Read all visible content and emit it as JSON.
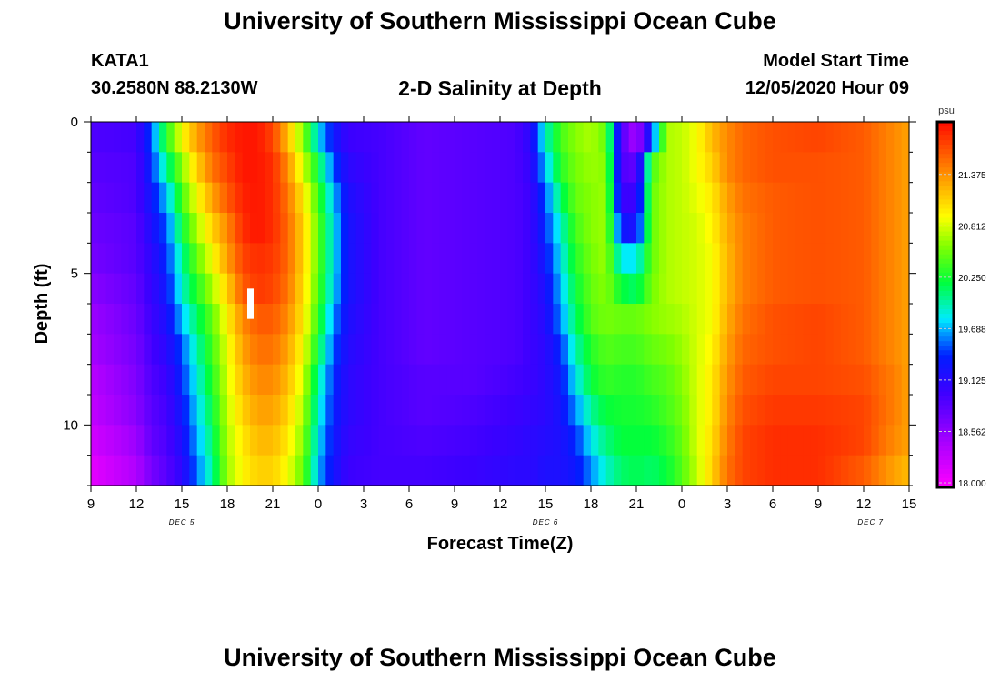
{
  "title": "University of Southern Mississippi Ocean Cube",
  "footer_title": "University of Southern Mississippi Ocean Cube",
  "station": {
    "id": "KATA1",
    "coords": "30.2580N 88.2130W"
  },
  "plot_title": "2-D Salinity at Depth",
  "model_start": {
    "label": "Model Start Time",
    "value": "12/05/2020 Hour 09"
  },
  "chart_data": {
    "type": "heatmap",
    "title": "2-D Salinity at Depth",
    "xlabel": "Forecast Time(Z)",
    "ylabel": "Depth (ft)",
    "x_ticks": [
      "9",
      "12",
      "15",
      "18",
      "21",
      "0",
      "3",
      "6",
      "9",
      "12",
      "15",
      "18",
      "21",
      "0",
      "3",
      "6",
      "9",
      "12",
      "15"
    ],
    "x_range_hours": [
      0,
      54
    ],
    "y_ticks": [
      "0",
      "5",
      "10"
    ],
    "ylim": [
      0,
      12
    ],
    "date_labels": [
      "DEC 5",
      "DEC 6",
      "DEC 7"
    ],
    "colorbar": {
      "unit": "psu",
      "ticks": [
        "21.375",
        "20.812",
        "20.250",
        "19.688",
        "19.125",
        "18.562",
        "18.000"
      ],
      "range": [
        17.95,
        21.95
      ]
    },
    "columns": [
      {
        "t": 0,
        "s": [
          18.9,
          18.85,
          18.8,
          18.75,
          18.7,
          18.6,
          18.5,
          18.45,
          18.35,
          18.3,
          18.2,
          18.1
        ]
      },
      {
        "t": 3,
        "s": [
          18.95,
          18.9,
          18.9,
          18.85,
          18.85,
          18.8,
          18.75,
          18.7,
          18.65,
          18.6,
          18.5,
          18.4
        ]
      },
      {
        "t": 4,
        "s": [
          19.5,
          19.4,
          19.3,
          19.2,
          19.1,
          19.05,
          19.0,
          18.95,
          18.9,
          18.85,
          18.8,
          18.7
        ]
      },
      {
        "t": 5,
        "s": [
          20.3,
          20.0,
          19.7,
          19.5,
          19.4,
          19.3,
          19.2,
          19.1,
          19.0,
          18.95,
          18.9,
          18.85
        ]
      },
      {
        "t": 6,
        "s": [
          20.9,
          20.6,
          20.4,
          20.2,
          20.0,
          19.9,
          19.7,
          19.5,
          19.4,
          19.3,
          19.2,
          19.1
        ]
      },
      {
        "t": 7,
        "s": [
          21.3,
          21.1,
          20.9,
          20.7,
          20.5,
          20.3,
          20.1,
          19.95,
          19.85,
          19.75,
          19.65,
          19.55
        ]
      },
      {
        "t": 8,
        "s": [
          21.6,
          21.5,
          21.3,
          21.1,
          20.9,
          20.7,
          20.5,
          20.4,
          20.3,
          20.2,
          20.1,
          20.0
        ]
      },
      {
        "t": 9,
        "s": [
          21.8,
          21.7,
          21.6,
          21.4,
          21.3,
          21.1,
          20.95,
          20.85,
          20.8,
          20.75,
          20.7,
          20.65
        ]
      },
      {
        "t": 10,
        "s": [
          21.9,
          21.9,
          21.85,
          21.8,
          21.7,
          21.6,
          21.4,
          21.3,
          21.2,
          21.1,
          21.0,
          20.95
        ]
      },
      {
        "t": 11,
        "s": [
          21.9,
          21.9,
          21.9,
          21.9,
          21.8,
          21.75,
          21.6,
          21.5,
          21.4,
          21.3,
          21.2,
          21.1
        ]
      },
      {
        "t": 12,
        "s": [
          21.7,
          21.8,
          21.8,
          21.8,
          21.75,
          21.7,
          21.6,
          21.5,
          21.4,
          21.3,
          21.2,
          21.1
        ]
      },
      {
        "t": 13,
        "s": [
          21.2,
          21.4,
          21.5,
          21.55,
          21.55,
          21.5,
          21.4,
          21.3,
          21.2,
          21.1,
          21.0,
          20.9
        ]
      },
      {
        "t": 14,
        "s": [
          20.6,
          20.8,
          21.0,
          21.1,
          21.1,
          21.05,
          21.0,
          20.9,
          20.8,
          20.7,
          20.6,
          20.5
        ]
      },
      {
        "t": 15,
        "s": [
          19.8,
          20.2,
          20.4,
          20.5,
          20.5,
          20.45,
          20.35,
          20.2,
          20.0,
          19.9,
          19.8,
          19.7
        ]
      },
      {
        "t": 16,
        "s": [
          19.3,
          19.5,
          19.7,
          19.8,
          19.8,
          19.75,
          19.6,
          19.5,
          19.4,
          19.35,
          19.3,
          19.25
        ]
      },
      {
        "t": 17,
        "s": [
          19.0,
          19.1,
          19.2,
          19.25,
          19.25,
          19.25,
          19.2,
          19.15,
          19.1,
          19.1,
          19.05,
          19.0
        ]
      },
      {
        "t": 19,
        "s": [
          18.95,
          18.95,
          18.95,
          18.95,
          18.95,
          18.95,
          18.95,
          18.95,
          18.95,
          18.95,
          18.95,
          18.95
        ]
      },
      {
        "t": 22,
        "s": [
          18.8,
          18.8,
          18.8,
          18.8,
          18.8,
          18.8,
          18.8,
          18.8,
          18.85,
          18.85,
          18.9,
          18.95
        ]
      },
      {
        "t": 25,
        "s": [
          18.85,
          18.85,
          18.85,
          18.85,
          18.85,
          18.85,
          18.85,
          18.85,
          18.85,
          18.9,
          18.95,
          19.0
        ]
      },
      {
        "t": 28,
        "s": [
          18.9,
          18.9,
          18.9,
          18.9,
          18.9,
          18.9,
          18.9,
          18.9,
          18.95,
          19.0,
          19.05,
          19.1
        ]
      },
      {
        "t": 29,
        "s": [
          19.1,
          19.05,
          19.0,
          19.0,
          19.0,
          19.0,
          19.0,
          19.0,
          19.0,
          19.05,
          19.1,
          19.1
        ]
      },
      {
        "t": 30,
        "s": [
          19.9,
          19.7,
          19.5,
          19.4,
          19.3,
          19.2,
          19.15,
          19.1,
          19.1,
          19.1,
          19.15,
          19.2
        ]
      },
      {
        "t": 31,
        "s": [
          20.4,
          20.3,
          20.1,
          19.9,
          19.8,
          19.7,
          19.6,
          19.4,
          19.3,
          19.25,
          19.2,
          19.2
        ]
      },
      {
        "t": 32,
        "s": [
          20.6,
          20.55,
          20.5,
          20.4,
          20.3,
          20.2,
          20.1,
          19.95,
          19.8,
          19.6,
          19.4,
          19.3
        ]
      },
      {
        "t": 33,
        "s": [
          20.7,
          20.65,
          20.6,
          20.6,
          20.55,
          20.5,
          20.45,
          20.3,
          20.2,
          20.0,
          19.8,
          19.6
        ]
      },
      {
        "t": 34,
        "s": [
          20.5,
          20.6,
          20.65,
          20.65,
          20.65,
          20.6,
          20.55,
          20.45,
          20.35,
          20.2,
          20.05,
          19.9
        ]
      },
      {
        "t": 35,
        "s": [
          18.9,
          18.9,
          19.0,
          19.3,
          19.8,
          20.2,
          20.5,
          20.4,
          20.3,
          20.25,
          20.2,
          20.1
        ]
      },
      {
        "t": 36,
        "s": [
          18.4,
          18.8,
          19.0,
          19.2,
          19.8,
          20.1,
          20.5,
          20.4,
          20.3,
          20.25,
          20.2,
          20.15
        ]
      },
      {
        "t": 37,
        "s": [
          19.4,
          20.4,
          20.5,
          20.5,
          20.5,
          20.55,
          20.6,
          20.5,
          20.4,
          20.3,
          20.2,
          20.1
        ]
      },
      {
        "t": 38,
        "s": [
          20.7,
          20.7,
          20.7,
          20.7,
          20.7,
          20.7,
          20.65,
          20.55,
          20.45,
          20.4,
          20.3,
          20.2
        ]
      },
      {
        "t": 39,
        "s": [
          20.75,
          20.75,
          20.75,
          20.75,
          20.75,
          20.75,
          20.7,
          20.65,
          20.6,
          20.55,
          20.5,
          20.45
        ]
      },
      {
        "t": 40,
        "s": [
          20.9,
          20.9,
          20.85,
          20.8,
          20.8,
          20.8,
          20.8,
          20.8,
          20.8,
          20.8,
          20.8,
          20.75
        ]
      },
      {
        "t": 41,
        "s": [
          21.2,
          21.1,
          21.0,
          20.95,
          20.9,
          20.9,
          20.9,
          20.95,
          21.0,
          21.0,
          21.05,
          21.1
        ]
      },
      {
        "t": 42,
        "s": [
          21.4,
          21.4,
          21.3,
          21.25,
          21.2,
          21.2,
          21.25,
          21.3,
          21.35,
          21.4,
          21.45,
          21.5
        ]
      },
      {
        "t": 43,
        "s": [
          21.55,
          21.55,
          21.5,
          21.45,
          21.45,
          21.45,
          21.5,
          21.55,
          21.6,
          21.65,
          21.7,
          21.7
        ]
      },
      {
        "t": 45,
        "s": [
          21.65,
          21.65,
          21.6,
          21.6,
          21.6,
          21.6,
          21.65,
          21.65,
          21.7,
          21.75,
          21.8,
          21.8
        ]
      },
      {
        "t": 48,
        "s": [
          21.7,
          21.65,
          21.65,
          21.65,
          21.65,
          21.65,
          21.7,
          21.7,
          21.7,
          21.75,
          21.8,
          21.8
        ]
      },
      {
        "t": 51,
        "s": [
          21.6,
          21.6,
          21.6,
          21.6,
          21.6,
          21.6,
          21.6,
          21.6,
          21.65,
          21.7,
          21.7,
          21.6
        ]
      },
      {
        "t": 53,
        "s": [
          21.4,
          21.4,
          21.4,
          21.4,
          21.4,
          21.4,
          21.4,
          21.4,
          21.45,
          21.45,
          21.4,
          21.3
        ]
      },
      {
        "t": 54,
        "s": [
          21.3,
          21.3,
          21.3,
          21.3,
          21.3,
          21.3,
          21.3,
          21.3,
          21.3,
          21.3,
          21.3,
          21.2
        ]
      }
    ],
    "marker": {
      "t": 10.5,
      "depth_range": [
        5.5,
        6.5
      ]
    }
  }
}
